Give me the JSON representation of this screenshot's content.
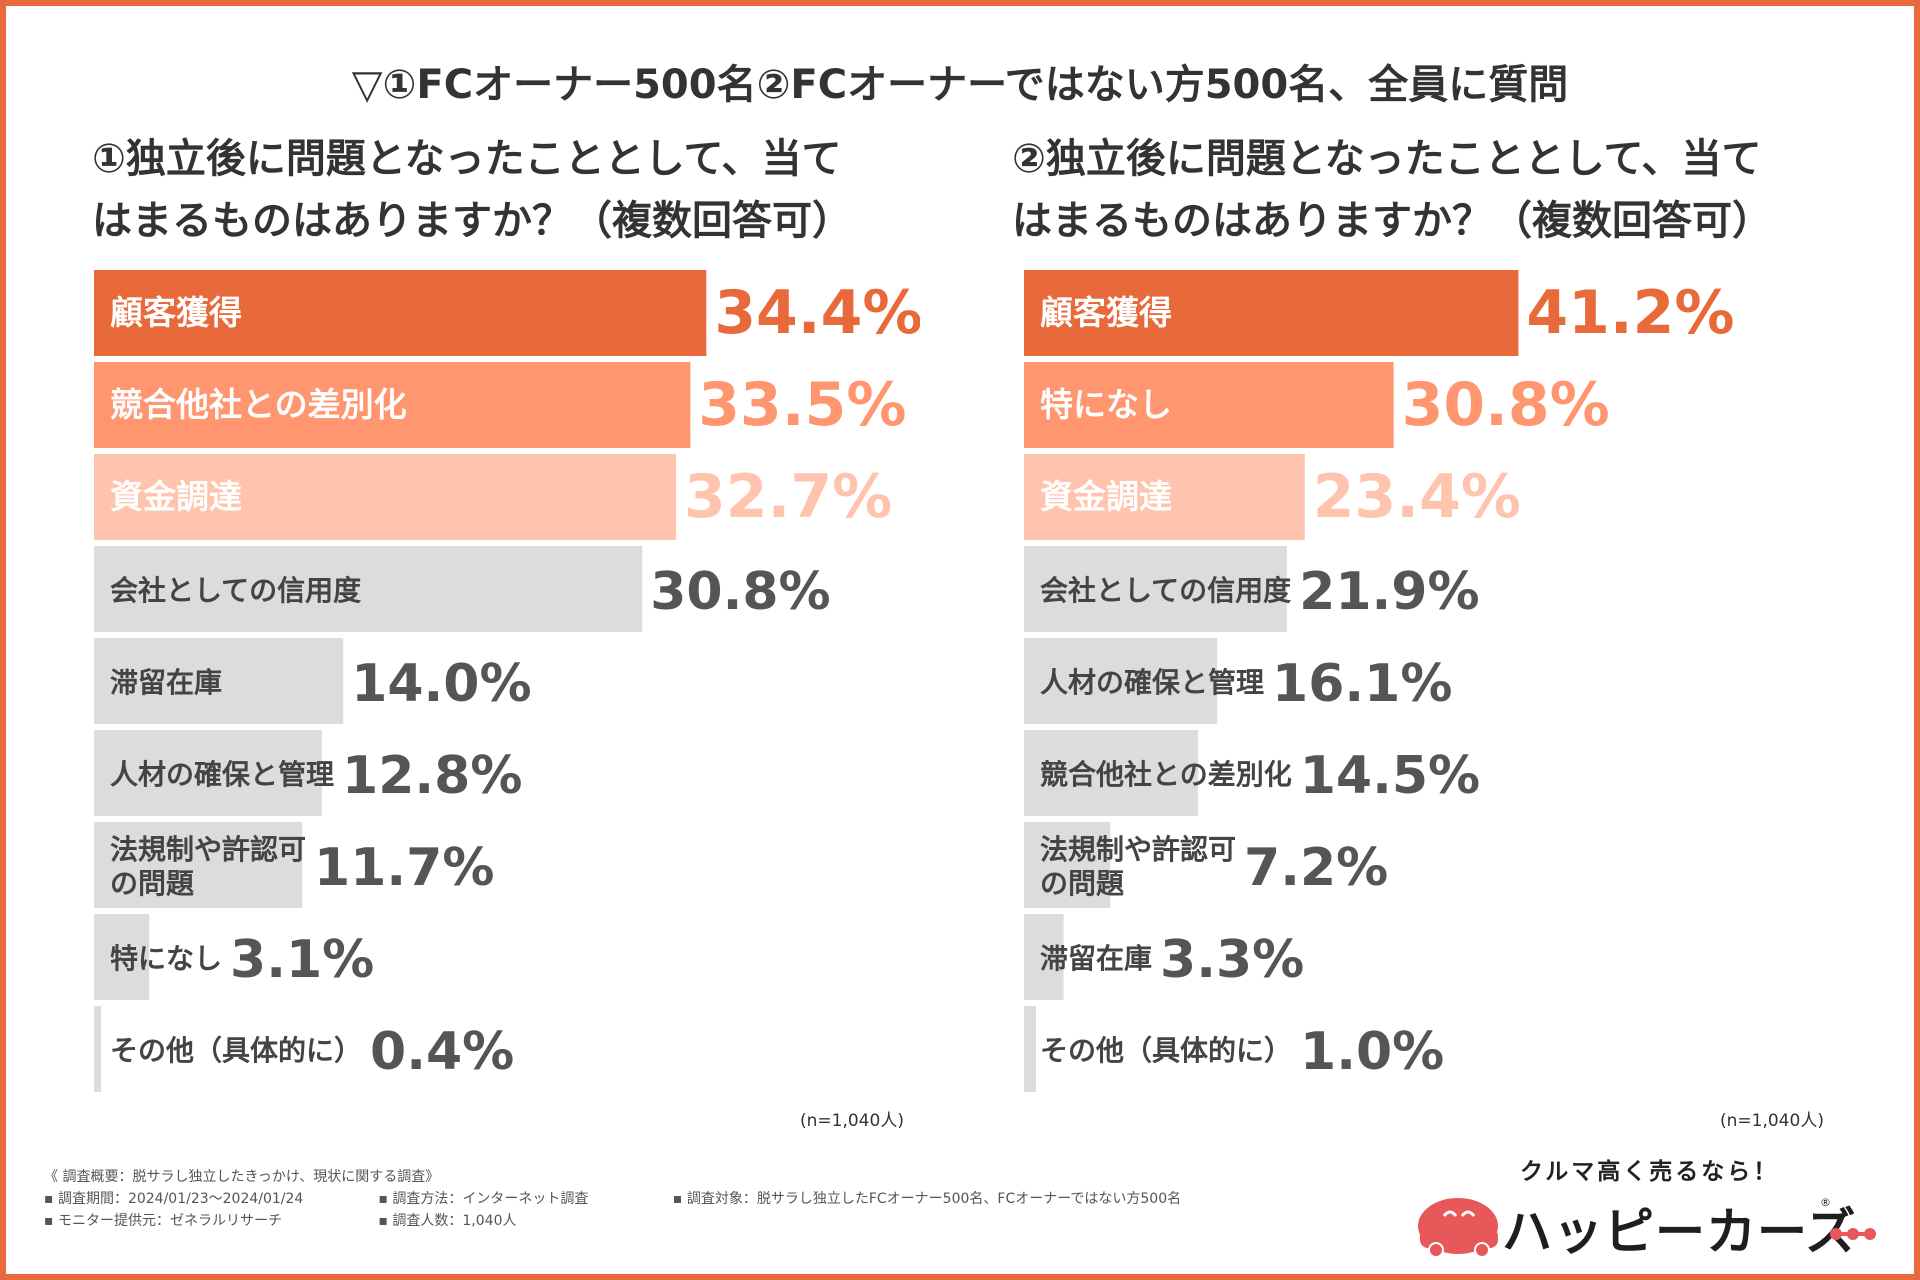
{
  "title": "▽①FCオーナー500名②FCオーナーではない方500名、全員に質問",
  "colors": {
    "frame": "#e8693a",
    "rank1": "#e8693a",
    "rank2": "#ff9670",
    "rank3": "#ffc4ad",
    "other": "#dcdcdc",
    "value_other": "#555555",
    "logo_red": "#e8575a"
  },
  "chart_data": [
    {
      "type": "bar",
      "orientation": "horizontal",
      "title": "①独立後に問題となったこととして、当てはまるものはありますか？（複数回答可）",
      "title_lines": [
        "①独立後に問題となったこととして、当て",
        "はまるものはありますか？（複数回答可）"
      ],
      "categories": [
        "顧客獲得",
        "競合他社との差別化",
        "資金調達",
        "会社としての信用度",
        "滞留在庫",
        "人材の確保と管理",
        "法規制や許認可の問題",
        "特になし",
        "その他（具体的に）"
      ],
      "category_lines": [
        [
          "顧客獲得"
        ],
        [
          "競合他社との差別化"
        ],
        [
          "資金調達"
        ],
        [
          "会社としての信用度"
        ],
        [
          "滞留在庫"
        ],
        [
          "人材の確保と管理"
        ],
        [
          "法規制や許認可",
          "の問題"
        ],
        [
          "特になし"
        ],
        [
          "その他（具体的に）"
        ]
      ],
      "values": [
        34.4,
        33.5,
        32.7,
        30.8,
        14.0,
        12.8,
        11.7,
        3.1,
        0.4
      ],
      "value_labels": [
        "34.4%",
        "33.5%",
        "32.7%",
        "30.8%",
        "14.0%",
        "12.8%",
        "11.7%",
        "3.1%",
        "0.4%"
      ],
      "unit": "%",
      "note": "(n=1,040人)"
    },
    {
      "type": "bar",
      "orientation": "horizontal",
      "title": "②独立後に問題となったこととして、当てはまるものはありますか？（複数回答可）",
      "title_lines": [
        "②独立後に問題となったこととして、当て",
        "はまるものはありますか？（複数回答可）"
      ],
      "categories": [
        "顧客獲得",
        "特になし",
        "資金調達",
        "会社としての信用度",
        "人材の確保と管理",
        "競合他社との差別化",
        "法規制や許認可の問題",
        "滞留在庫",
        "その他（具体的に）"
      ],
      "category_lines": [
        [
          "顧客獲得"
        ],
        [
          "特になし"
        ],
        [
          "資金調達"
        ],
        [
          "会社としての信用度"
        ],
        [
          "人材の確保と管理"
        ],
        [
          "競合他社との差別化"
        ],
        [
          "法規制や許認可",
          "の問題"
        ],
        [
          "滞留在庫"
        ],
        [
          "その他（具体的に）"
        ]
      ],
      "values": [
        41.2,
        30.8,
        23.4,
        21.9,
        16.1,
        14.5,
        7.2,
        3.3,
        1.0
      ],
      "value_labels": [
        "41.2%",
        "30.8%",
        "23.4%",
        "21.9%",
        "16.1%",
        "14.5%",
        "7.2%",
        "3.3%",
        "1.0%"
      ],
      "unit": "%",
      "note": "(n=1,040人)"
    }
  ],
  "survey": {
    "heading": "《 調査概要：脱サラし独立したきっかけ、現状に関する調査》",
    "period": "▪ 調査期間：2024/01/23〜2024/01/24",
    "method": "▪ 調査方法：インターネット調査",
    "target": "▪ 調査対象：脱サラし独立したFCオーナー500名、FCオーナーではない方500名",
    "provider": "▪ モニター提供元：ゼネラルリサーチ",
    "count": "▪ 調査人数：1,040人"
  },
  "logo": {
    "tagline": "クルマ高く売るなら！",
    "wordmark": "ハッピーカーズ",
    "registered": "®"
  }
}
